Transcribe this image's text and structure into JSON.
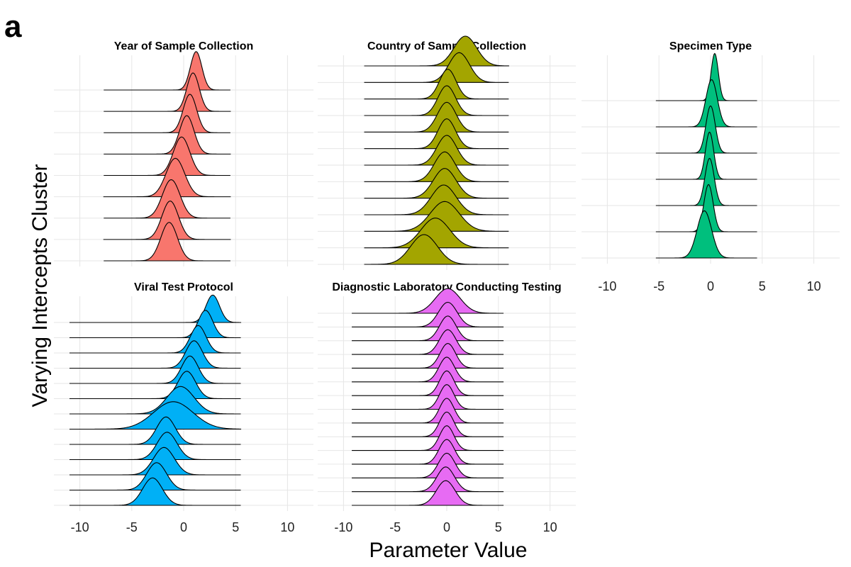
{
  "figure_label": "a",
  "xlabel": "Parameter Value",
  "ylabel": "Varying Intercepts Cluster",
  "chart_data": [
    {
      "type": "ridgeline",
      "title": "Year of Sample Collection",
      "color": "#F8766D",
      "xticks": [
        -10,
        -5,
        0,
        5,
        10
      ],
      "xlim": [
        -12.5,
        12.5
      ],
      "show_tick_labels": false,
      "series": [
        {
          "mode": 1.2,
          "sd": 0.55,
          "support": [
            -7.7,
            4.5
          ]
        },
        {
          "mode": 0.9,
          "sd": 0.6,
          "support": [
            -7.7,
            4.5
          ]
        },
        {
          "mode": 0.6,
          "sd": 0.65,
          "support": [
            -7.7,
            4.5
          ]
        },
        {
          "mode": 0.3,
          "sd": 0.7,
          "support": [
            -7.7,
            4.5
          ]
        },
        {
          "mode": -0.2,
          "sd": 0.8,
          "support": [
            -7.7,
            4.5
          ]
        },
        {
          "mode": -0.8,
          "sd": 0.9,
          "support": [
            -7.7,
            4.5
          ]
        },
        {
          "mode": -1.2,
          "sd": 0.85,
          "support": [
            -7.7,
            4.5
          ]
        },
        {
          "mode": -1.3,
          "sd": 0.8,
          "support": [
            -7.7,
            4.5
          ]
        },
        {
          "mode": -1.4,
          "sd": 0.8,
          "support": [
            -7.7,
            4.5
          ]
        }
      ]
    },
    {
      "type": "ridgeline",
      "title": "Country of Sample Collection",
      "color": "#A3A500",
      "xticks": [
        -10,
        -5,
        0,
        5,
        10
      ],
      "xlim": [
        -12.5,
        12.5
      ],
      "show_tick_labels": false,
      "series": [
        {
          "mode": 1.8,
          "sd": 1.1,
          "support": [
            -8,
            6
          ]
        },
        {
          "mode": 1.2,
          "sd": 1.0,
          "support": [
            -8,
            6
          ]
        },
        {
          "mode": 0.1,
          "sd": 0.8,
          "support": [
            -8,
            6
          ]
        },
        {
          "mode": 0.0,
          "sd": 0.85,
          "support": [
            -8,
            6
          ]
        },
        {
          "mode": 0.0,
          "sd": 0.9,
          "support": [
            -8,
            6
          ]
        },
        {
          "mode": 0.0,
          "sd": 0.85,
          "support": [
            -8,
            6
          ]
        },
        {
          "mode": 0.0,
          "sd": 0.95,
          "support": [
            -8,
            6
          ]
        },
        {
          "mode": -0.2,
          "sd": 1.0,
          "support": [
            -8,
            6
          ]
        },
        {
          "mode": -0.2,
          "sd": 1.1,
          "support": [
            -8,
            6
          ]
        },
        {
          "mode": -0.3,
          "sd": 1.2,
          "support": [
            -8,
            6
          ]
        },
        {
          "mode": -0.2,
          "sd": 1.4,
          "support": [
            -8,
            6
          ]
        },
        {
          "mode": -1.1,
          "sd": 1.4,
          "support": [
            -8,
            6
          ]
        },
        {
          "mode": -2.2,
          "sd": 1.3,
          "support": [
            -8,
            6
          ]
        }
      ]
    },
    {
      "type": "ridgeline",
      "title": "Specimen Type",
      "color": "#00BF7D",
      "xticks": [
        -10,
        -5,
        0,
        5,
        10
      ],
      "xlim": [
        -12.5,
        12.5
      ],
      "show_tick_labels": true,
      "series": [
        {
          "mode": 0.4,
          "sd": 0.35,
          "support": [
            -5.3,
            4.5
          ]
        },
        {
          "mode": 0.1,
          "sd": 0.55,
          "support": [
            -5.3,
            4.5
          ]
        },
        {
          "mode": 0.0,
          "sd": 0.45,
          "support": [
            -5.3,
            4.5
          ]
        },
        {
          "mode": -0.1,
          "sd": 0.4,
          "support": [
            -5.3,
            4.5
          ]
        },
        {
          "mode": -0.1,
          "sd": 0.45,
          "support": [
            -5.3,
            4.5
          ]
        },
        {
          "mode": -0.2,
          "sd": 0.45,
          "support": [
            -5.3,
            4.5
          ]
        },
        {
          "mode": -0.6,
          "sd": 0.7,
          "support": [
            -5.3,
            4.5
          ]
        }
      ]
    },
    {
      "type": "ridgeline",
      "title": "Viral Test Protocol",
      "color": "#00B0F6",
      "xticks": [
        -10,
        -5,
        0,
        5,
        10
      ],
      "xlim": [
        -12.5,
        12.5
      ],
      "show_tick_labels": true,
      "series": [
        {
          "mode": 2.8,
          "sd": 0.65,
          "support": [
            -11,
            5.5
          ]
        },
        {
          "mode": 2.1,
          "sd": 0.7,
          "support": [
            -11,
            5.5
          ]
        },
        {
          "mode": 1.4,
          "sd": 0.75,
          "support": [
            -11,
            5.5
          ]
        },
        {
          "mode": 1.0,
          "sd": 0.8,
          "support": [
            -11,
            5.5
          ]
        },
        {
          "mode": 0.6,
          "sd": 0.8,
          "support": [
            -11,
            5.5
          ]
        },
        {
          "mode": 0.3,
          "sd": 0.85,
          "support": [
            -11,
            5.5
          ]
        },
        {
          "mode": -0.3,
          "sd": 1.3,
          "support": [
            -11,
            5.5
          ]
        },
        {
          "mode": -1.0,
          "sd": 1.9,
          "support": [
            -11,
            5.5
          ]
        },
        {
          "mode": -1.7,
          "sd": 0.9,
          "support": [
            -11,
            5.5
          ]
        },
        {
          "mode": -1.6,
          "sd": 0.95,
          "support": [
            -11,
            5.5
          ]
        },
        {
          "mode": -1.9,
          "sd": 1.0,
          "support": [
            -11,
            5.5
          ]
        },
        {
          "mode": -2.6,
          "sd": 0.95,
          "support": [
            -11,
            5.5
          ]
        },
        {
          "mode": -3.0,
          "sd": 0.95,
          "support": [
            -11,
            5.5
          ]
        }
      ]
    },
    {
      "type": "ridgeline",
      "title": "Diagnostic Laboratory Conducting Testing",
      "color": "#E76BF3",
      "xticks": [
        -10,
        -5,
        0,
        5,
        10
      ],
      "xlim": [
        -12.5,
        12.5
      ],
      "show_tick_labels": true,
      "series": [
        {
          "mode": 0.1,
          "sd": 1.2,
          "support": [
            -9.2,
            5.5
          ]
        },
        {
          "mode": 0.1,
          "sd": 0.9,
          "support": [
            -9.2,
            5.5
          ]
        },
        {
          "mode": 0.1,
          "sd": 0.8,
          "support": [
            -9.2,
            5.5
          ]
        },
        {
          "mode": 0.1,
          "sd": 0.8,
          "support": [
            -9.2,
            5.5
          ]
        },
        {
          "mode": 0.1,
          "sd": 0.75,
          "support": [
            -9.2,
            5.5
          ]
        },
        {
          "mode": 0.0,
          "sd": 0.75,
          "support": [
            -9.2,
            5.5
          ]
        },
        {
          "mode": 0.0,
          "sd": 0.7,
          "support": [
            -9.2,
            5.5
          ]
        },
        {
          "mode": 0.0,
          "sd": 0.7,
          "support": [
            -9.2,
            5.5
          ]
        },
        {
          "mode": 0.0,
          "sd": 0.7,
          "support": [
            -9.2,
            5.5
          ]
        },
        {
          "mode": 0.0,
          "sd": 0.7,
          "support": [
            -9.2,
            5.5
          ]
        },
        {
          "mode": 0.0,
          "sd": 0.7,
          "support": [
            -9.2,
            5.5
          ]
        },
        {
          "mode": 0.0,
          "sd": 0.75,
          "support": [
            -9.2,
            5.5
          ]
        },
        {
          "mode": 0.0,
          "sd": 0.8,
          "support": [
            -9.2,
            5.5
          ]
        },
        {
          "mode": -0.1,
          "sd": 0.85,
          "support": [
            -9.2,
            5.5
          ]
        },
        {
          "mode": -0.1,
          "sd": 0.9,
          "support": [
            -9.2,
            5.5
          ]
        }
      ]
    }
  ]
}
